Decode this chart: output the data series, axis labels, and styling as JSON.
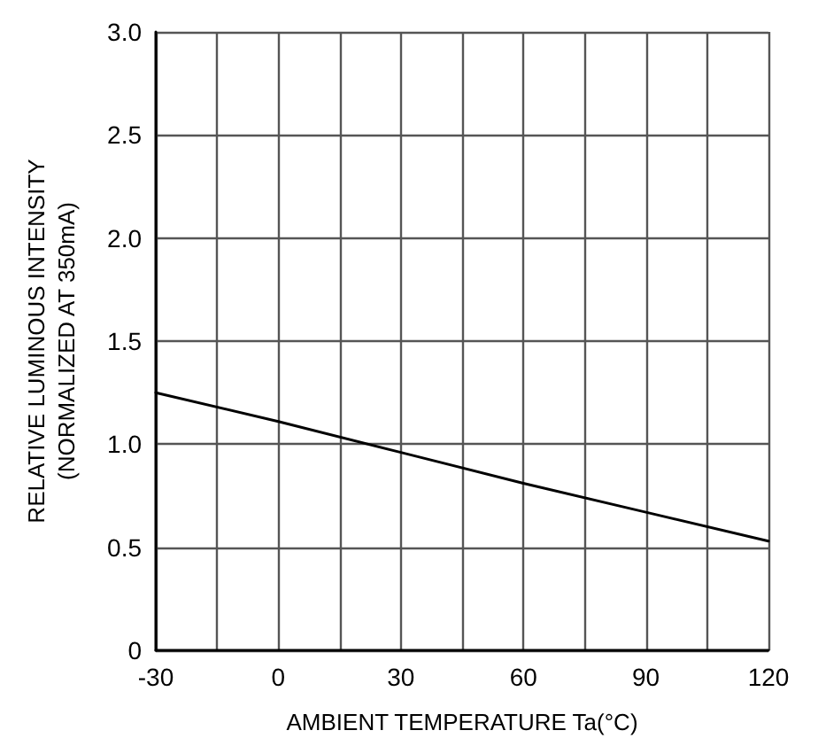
{
  "chart_data": {
    "type": "line",
    "xlabel": "AMBIENT TEMPERATURE Ta(°C)",
    "ylabel": "RELATIVE LUMINOUS INTENSITY\n(NORMALIZED AT 350mA)",
    "x": [
      -30,
      0,
      30,
      60,
      90,
      120
    ],
    "series": [
      {
        "color": "#000000",
        "values": [
          1.25,
          1.11,
          0.96,
          0.81,
          0.67,
          0.53
        ]
      }
    ],
    "xlim": [
      -30,
      120
    ],
    "xticks": [
      -30,
      {
        "value": -15,
        "label": null
      },
      0,
      {
        "value": 15,
        "label": null
      },
      30,
      {
        "value": 45,
        "label": null
      },
      60,
      {
        "value": 75,
        "label": null
      },
      90,
      {
        "value": 105,
        "label": null
      },
      120
    ],
    "ylim": [
      0,
      3
    ],
    "yticks": [
      0,
      0.5,
      {
        "value": 1,
        "label": "1.0"
      },
      1.5,
      {
        "value": 2,
        "label": "2.0"
      },
      2.5,
      {
        "value": 3,
        "label": "3.0"
      }
    ],
    "grid": true,
    "marker": "none",
    "line_style": "solid"
  }
}
